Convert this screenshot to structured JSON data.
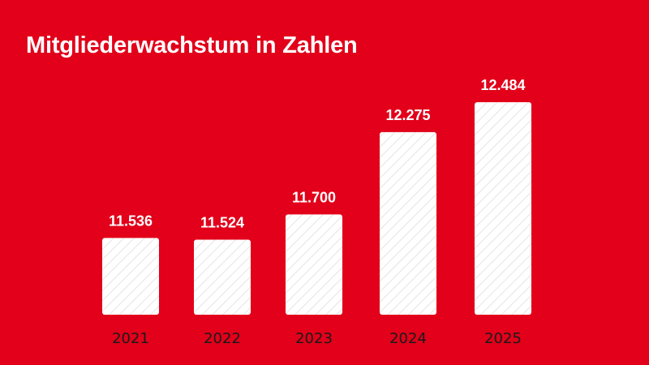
{
  "title": "Mitgliederwachstum in Zahlen",
  "colors": {
    "background": "#e2001a",
    "bar": "#ffffff",
    "hatch": "#e4e4e4",
    "value_text": "#ffffff",
    "category_text": "#1a1a1a"
  },
  "chart_data": {
    "type": "bar",
    "categories": [
      "2021",
      "2022",
      "2023",
      "2024",
      "2025"
    ],
    "values": [
      11536,
      11524,
      11700,
      12275,
      12484
    ],
    "value_labels": [
      "11.536",
      "11.524",
      "11.700",
      "12.275",
      "12.484"
    ],
    "title": "Mitgliederwachstum in Zahlen",
    "xlabel": "",
    "ylabel": "",
    "grid": false,
    "legend": "none"
  }
}
